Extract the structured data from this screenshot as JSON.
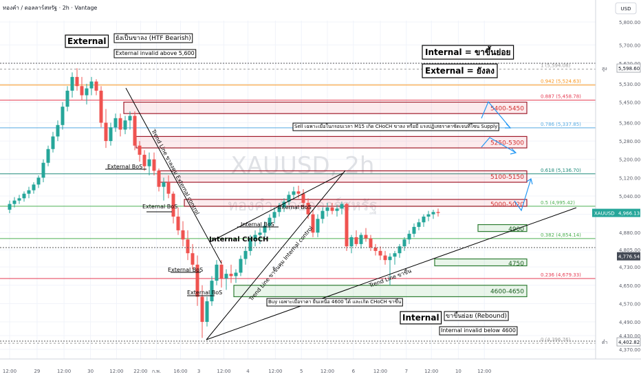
{
  "header": {
    "title": "ทองคำ / ดอลลาร์สหรัฐ · 2h · Vantage",
    "currency": "USD"
  },
  "watermark": {
    "symbol": "XAUUSD, 2h",
    "subtitle": "ทองคำ / ดอลลาร์สหรัฐ"
  },
  "chart_data": {
    "type": "candlestick",
    "symbol": "XAUUSD",
    "timeframe": "2h",
    "ylim": [
      4360,
      5860
    ],
    "y_ticks": [
      4370,
      4430,
      4490,
      4570,
      4650,
      4730,
      4805,
      4880,
      4960,
      5040,
      5120,
      5200,
      5280,
      5360,
      5450,
      5530,
      5620,
      5700,
      5800
    ],
    "y_tick_labels": [
      "4,370.00",
      "4,430.00",
      "4,490.00",
      "4,570.00",
      "4,650.00",
      "4,730.00",
      "4,805.00",
      "4,880.00",
      "4,960.00",
      "5,040.00",
      "5,120.00",
      "5,200.00",
      "5,280.00",
      "5,360.00",
      "5,450.00",
      "5,530.00",
      "5,620.00",
      "5,700.00",
      "5,800.00"
    ],
    "x_ticks": [
      {
        "label": "12:00",
        "i": 0
      },
      {
        "label": "29",
        "i": 5.7
      },
      {
        "label": "12:00",
        "i": 11.3
      },
      {
        "label": "30",
        "i": 16.8
      },
      {
        "label": "12:00",
        "i": 22.2
      },
      {
        "label": "22:00",
        "i": 27.2
      },
      {
        "label": "ก.พ.",
        "i": 30.5
      },
      {
        "label": "16:00",
        "i": 35.5
      },
      {
        "label": "3",
        "i": 39.3
      },
      {
        "label": "12:00",
        "i": 44.5
      },
      {
        "label": "4",
        "i": 49.5
      },
      {
        "label": "12:00",
        "i": 55.2
      },
      {
        "label": "5",
        "i": 60.6
      },
      {
        "label": "12:00",
        "i": 66
      },
      {
        "label": "6",
        "i": 71.4
      },
      {
        "label": "12:00",
        "i": 77
      },
      {
        "label": "7",
        "i": 82.4
      },
      {
        "label": "12:00",
        "i": 87.6
      },
      {
        "label": "10",
        "i": 93.2
      },
      {
        "label": "12:00",
        "i": 98.6
      }
    ],
    "candles": [
      [
        4980,
        5020,
        4965,
        5005
      ],
      [
        5005,
        5035,
        4990,
        5020
      ],
      [
        5020,
        5045,
        5005,
        5030
      ],
      [
        5030,
        5060,
        5015,
        5050
      ],
      [
        5050,
        5080,
        5030,
        5065
      ],
      [
        5065,
        5100,
        5050,
        5090
      ],
      [
        5090,
        5130,
        5075,
        5120
      ],
      [
        5120,
        5200,
        5100,
        5185
      ],
      [
        5185,
        5260,
        5170,
        5245
      ],
      [
        5245,
        5320,
        5230,
        5300
      ],
      [
        5300,
        5370,
        5280,
        5350
      ],
      [
        5350,
        5450,
        5330,
        5430
      ],
      [
        5430,
        5520,
        5410,
        5500
      ],
      [
        5500,
        5580,
        5470,
        5560
      ],
      [
        5560,
        5598,
        5500,
        5520
      ],
      [
        5520,
        5560,
        5460,
        5480
      ],
      [
        5480,
        5530,
        5440,
        5510
      ],
      [
        5510,
        5560,
        5480,
        5540
      ],
      [
        5540,
        5550,
        5480,
        5500
      ],
      [
        5500,
        5520,
        5340,
        5360
      ],
      [
        5360,
        5420,
        5250,
        5280
      ],
      [
        5280,
        5360,
        5260,
        5340
      ],
      [
        5340,
        5400,
        5320,
        5380
      ],
      [
        5380,
        5400,
        5300,
        5330
      ],
      [
        5330,
        5390,
        5310,
        5370
      ],
      [
        5370,
        5410,
        5330,
        5390
      ],
      [
        5390,
        5410,
        5240,
        5260
      ],
      [
        5260,
        5280,
        5190,
        5220
      ],
      [
        5220,
        5240,
        5150,
        5170
      ],
      [
        5170,
        5230,
        5130,
        5200
      ],
      [
        5200,
        5230,
        5130,
        5150
      ],
      [
        5150,
        5160,
        5060,
        5080
      ],
      [
        5080,
        5120,
        5020,
        5100
      ],
      [
        5100,
        5130,
        5030,
        5050
      ],
      [
        5050,
        5060,
        4920,
        4950
      ],
      [
        4950,
        4990,
        4870,
        4890
      ],
      [
        4890,
        4930,
        4820,
        4850
      ],
      [
        4850,
        4890,
        4760,
        4790
      ],
      [
        4790,
        4830,
        4720,
        4740
      ],
      [
        4740,
        4780,
        4560,
        4600
      ],
      [
        4600,
        4650,
        4420,
        4490
      ],
      [
        4490,
        4600,
        4470,
        4580
      ],
      [
        4580,
        4690,
        4560,
        4670
      ],
      [
        4670,
        4760,
        4650,
        4740
      ],
      [
        4740,
        4760,
        4640,
        4680
      ],
      [
        4680,
        4720,
        4630,
        4700
      ],
      [
        4700,
        4740,
        4660,
        4690
      ],
      [
        4690,
        4720,
        4660,
        4705
      ],
      [
        4705,
        4780,
        4690,
        4765
      ],
      [
        4765,
        4820,
        4740,
        4800
      ],
      [
        4800,
        4870,
        4780,
        4850
      ],
      [
        4850,
        4890,
        4820,
        4870
      ],
      [
        4870,
        4900,
        4830,
        4880
      ],
      [
        4880,
        4930,
        4860,
        4910
      ],
      [
        4910,
        4960,
        4890,
        4945
      ],
      [
        4945,
        4990,
        4920,
        4970
      ],
      [
        4970,
        5010,
        4950,
        4990
      ],
      [
        4990,
        5030,
        4970,
        5015
      ],
      [
        5015,
        5060,
        5000,
        5045
      ],
      [
        5045,
        5080,
        5025,
        5060
      ],
      [
        5060,
        5085,
        5030,
        5050
      ],
      [
        5050,
        5070,
        4990,
        5010
      ],
      [
        5010,
        5030,
        4940,
        4960
      ],
      [
        4960,
        4980,
        4860,
        4880
      ],
      [
        4880,
        4960,
        4860,
        4940
      ],
      [
        4940,
        4990,
        4920,
        4975
      ],
      [
        4975,
        5010,
        4950,
        4990
      ],
      [
        4990,
        5010,
        4960,
        4975
      ],
      [
        4975,
        5000,
        4950,
        4985
      ],
      [
        4985,
        5015,
        4960,
        5005
      ],
      [
        5005,
        5010,
        4800,
        4820
      ],
      [
        4820,
        4870,
        4790,
        4860
      ],
      [
        4860,
        4890,
        4820,
        4830
      ],
      [
        4830,
        4880,
        4810,
        4870
      ],
      [
        4870,
        4900,
        4840,
        4855
      ],
      [
        4855,
        4870,
        4800,
        4815
      ],
      [
        4815,
        4830,
        4780,
        4800
      ],
      [
        4800,
        4820,
        4760,
        4780
      ],
      [
        4780,
        4800,
        4740,
        4760
      ],
      [
        4760,
        4790,
        4650,
        4775
      ],
      [
        4775,
        4800,
        4740,
        4790
      ],
      [
        4790,
        4830,
        4770,
        4820
      ],
      [
        4820,
        4860,
        4800,
        4850
      ],
      [
        4850,
        4890,
        4830,
        4875
      ],
      [
        4875,
        4920,
        4860,
        4905
      ],
      [
        4905,
        4940,
        4890,
        4925
      ],
      [
        4925,
        4960,
        4905,
        4950
      ],
      [
        4950,
        4975,
        4930,
        4960
      ],
      [
        4960,
        4980,
        4940,
        4970
      ],
      [
        4970,
        4985,
        4950,
        4966
      ]
    ],
    "fib_levels": [
      {
        "ratio": "1",
        "price": 5594.08,
        "label": "1 (5,594.08)",
        "color": "#9e9e9e"
      },
      {
        "ratio": "0.942",
        "price": 5524.63,
        "label": "0.942 (5,524.63)",
        "color": "#f7931a"
      },
      {
        "ratio": "0.887",
        "price": 5458.78,
        "label": "0.887 (5,458.78)",
        "color": "#e53950"
      },
      {
        "ratio": "0.786",
        "price": 5337.85,
        "label": "0.786 (5,337.85)",
        "color": "#55a9e0"
      },
      {
        "ratio": "0.618",
        "price": 5136.7,
        "label": "0.618 (5,136.70)",
        "color": "#1e8a7a"
      },
      {
        "ratio": "0.5",
        "price": 4995.42,
        "label": "0.5 (4,995.42)",
        "color": "#4caf50"
      },
      {
        "ratio": "0.382",
        "price": 4854.14,
        "label": "0.382 (4,854.14)",
        "color": "#4caf50"
      },
      {
        "ratio": "0.236",
        "price": 4679.33,
        "label": "0.236 (4,679.33)",
        "color": "#e53950"
      },
      {
        "ratio": "0",
        "price": 4396.76,
        "label": "0 (4,396.76)",
        "color": "#9e9e9e"
      }
    ],
    "zones": [
      {
        "label": "5400-5450",
        "low": 5400,
        "high": 5450,
        "kind": "supply"
      },
      {
        "label": "5250-5300",
        "low": 5250,
        "high": 5300,
        "kind": "supply"
      },
      {
        "label": "5100-5150",
        "low": 5100,
        "high": 5150,
        "kind": "supply"
      },
      {
        "label": "5000-5020",
        "low": 5000,
        "high": 5020,
        "kind": "supply"
      },
      {
        "label": "4900",
        "low": 4888,
        "high": 4912,
        "kind": "demand"
      },
      {
        "label": "4750",
        "low": 4738,
        "high": 4762,
        "kind": "demand"
      },
      {
        "label": "4600-4650",
        "low": 4600,
        "high": 4650,
        "kind": "demand"
      }
    ],
    "price_badges": [
      {
        "text": "สูง",
        "value": "5,598.60",
        "price": 5598.6,
        "bg": "#ffffff",
        "fg": "#131722"
      },
      {
        "text": "XAUUSD",
        "value": "4,966.13",
        "price": 4966.13,
        "bg": "#26a69a",
        "fg": "#ffffff"
      },
      {
        "text": "",
        "value": "4,776.54",
        "price": 4776.54,
        "bg": "#444a55",
        "fg": "#ffffff"
      },
      {
        "text": "ต่ำ",
        "value": "4,402.82",
        "price": 4402.82,
        "bg": "#ffffff",
        "fg": "#131722"
      }
    ]
  },
  "annotations": {
    "external_main": "External",
    "htf_bearish": "ยังเป็นขาลง (HTF Bearish)",
    "external_invalid": "External invalid above 5,600",
    "internal_up": "Internal = ขาขึ้นย่อย",
    "external_down": "External = ยังลง",
    "sell_note": "Sell เฉพาะเมื่อในกรอบเวลา M15 เกิด CHoCH ขาลง หรือมี แรงปฏิเสธราคาชัดเจนที่โซน Supply",
    "buy_note": "Buy เฉพาะเมื่อราคา ยืนเหนือ 4600 ได้ และเกิด CHoCH ขาขึ้น",
    "internal_main": "Internal",
    "rebound": "ขาขึ้นย่อย (Rebound)",
    "internal_invalid": "Internal invalid below 4600",
    "external_bos_1": "External BoS",
    "external_bos_2": "External BoS",
    "external_bos_3": "External BoS",
    "external_bos_4": "External BoS",
    "internal_bos": "Internal BoS",
    "internal_bos_2": "Internal BoS",
    "internal_choch": "Internal CHoCH",
    "trend_ext_control": "Trend Line ขาลงคุม External control",
    "trend_int_control": "Trend Line ขาขึ้นคุม Internal control",
    "trend_up": "Trend Line ขาขึ้น"
  }
}
